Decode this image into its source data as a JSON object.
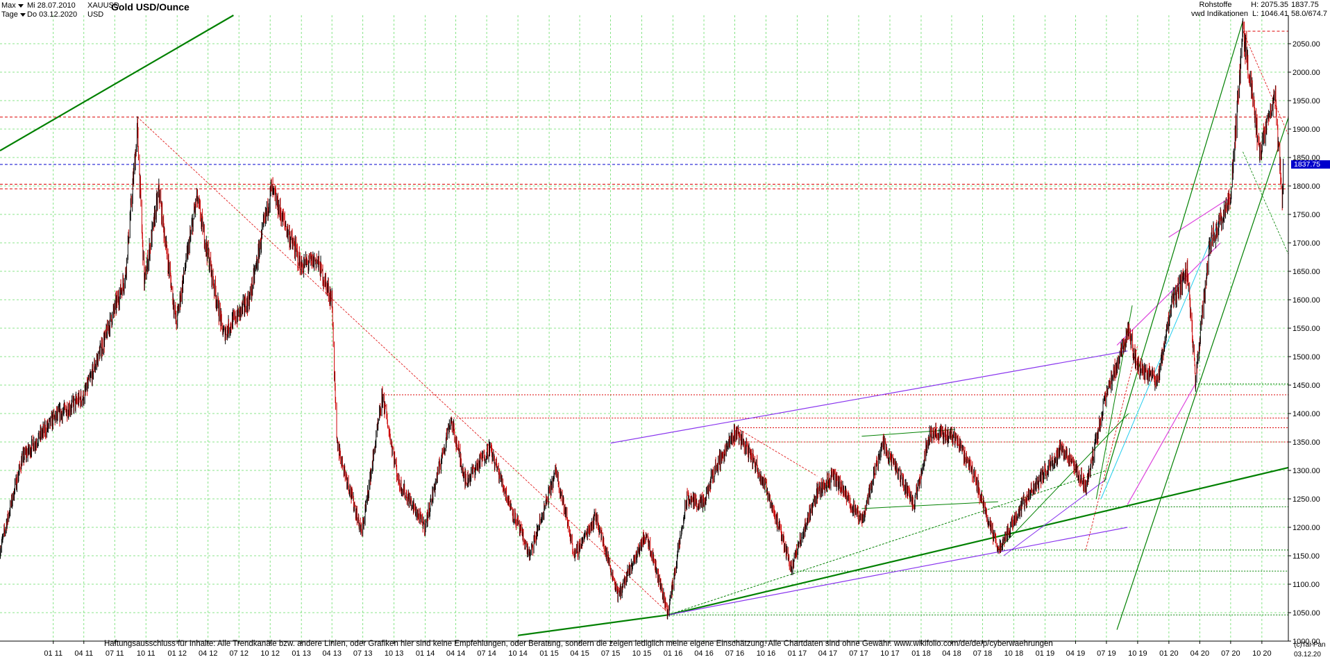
{
  "header": {
    "range_label": "Max",
    "interval_label": "Tage",
    "from_date": "Mi 28.07.2010",
    "to_date": "Do 03.12.2020",
    "symbol": "XAUUSD",
    "currency": "USD",
    "title": "Gold USD/Ounce"
  },
  "info": {
    "category": "Rohstoffe",
    "source": "vwd Indikationen",
    "high_label": "H: 2075.35",
    "low_label": "L: 1046.41",
    "last": "1837.75",
    "change": "58.0/674.7"
  },
  "footer": {
    "disclaimer": "Haftungsausschluss für Inhalte: Alle Trendkanäle bzw. andere Linien, oder Grafiken hier sind keine Empfehlungen, oder Beratung, sondern die zeigen lediglich meine eigene Einschätzung. Alle Chartdaten sind ohne Gewähr.  www.wikifolio.com/de/de/p/cyberwaehrungen",
    "copyright": "(c)Tai-Pan",
    "end_date": "03.12.20"
  },
  "colors": {
    "candle_up": "#000000",
    "candle_down": "#cc0000",
    "grid": "#66dd66",
    "trend_green": "#008000",
    "resistance_red": "#dd0000",
    "current_blue": "#0000cc",
    "purple": "#8833ee",
    "magenta": "#dd44dd",
    "cyan": "#22ccee"
  },
  "chart_data": {
    "type": "line",
    "subtype": "candlestick",
    "title": "Gold USD/Ounce",
    "ylim": [
      1000,
      2100
    ],
    "yticks": [
      1000,
      1050,
      1100,
      1150,
      1200,
      1250,
      1300,
      1350,
      1400,
      1450,
      1500,
      1550,
      1600,
      1650,
      1700,
      1750,
      1800,
      1850,
      1900,
      1950,
      2000,
      2050
    ],
    "xticks": [
      "01 11",
      "04 11",
      "07 11",
      "10 11",
      "01 12",
      "04 12",
      "07 12",
      "10 12",
      "01 13",
      "04 13",
      "07 13",
      "10 13",
      "01 14",
      "04 14",
      "07 14",
      "10 14",
      "01 15",
      "04 15",
      "07 15",
      "10 15",
      "01 16",
      "04 16",
      "07 16",
      "10 16",
      "01 17",
      "04 17",
      "07 17",
      "10 17",
      "01 18",
      "04 18",
      "07 18",
      "10 18",
      "01 19",
      "04 19",
      "07 19",
      "10 19",
      "01 20",
      "04 20",
      "07 20",
      "10 20"
    ],
    "grid": true,
    "current_price": 1837.75,
    "series": [
      {
        "name": "",
        "x": [
          "2010-07-28",
          "2010-10-01",
          "2011-01-01",
          "2011-04-01",
          "2011-06-01",
          "2011-08-01",
          "2011-09-06",
          "2011-09-26",
          "2011-11-08",
          "2011-12-29",
          "2012-02-28",
          "2012-05-16",
          "2012-08-01",
          "2012-10-04",
          "2012-12-31",
          "2013-02-15",
          "2013-04-01",
          "2013-04-15",
          "2013-06-28",
          "2013-08-28",
          "2013-10-15",
          "2013-12-31",
          "2014-03-17",
          "2014-05-01",
          "2014-07-10",
          "2014-09-01",
          "2014-11-05",
          "2015-01-22",
          "2015-03-17",
          "2015-05-18",
          "2015-07-24",
          "2015-10-14",
          "2015-12-17",
          "2016-02-11",
          "2016-04-01",
          "2016-05-01",
          "2016-07-06",
          "2016-09-01",
          "2016-10-07",
          "2016-12-15",
          "2017-02-27",
          "2017-04-17",
          "2017-07-10",
          "2017-09-08",
          "2017-12-12",
          "2018-01-25",
          "2018-04-11",
          "2018-06-01",
          "2018-08-16",
          "2018-10-26",
          "2019-02-20",
          "2019-05-02",
          "2019-06-25",
          "2019-09-04",
          "2019-10-01",
          "2019-12-01",
          "2020-01-08",
          "2020-02-24",
          "2020-03-19",
          "2020-05-01",
          "2020-07-01",
          "2020-08-06",
          "2020-09-01",
          "2020-09-24",
          "2020-11-09",
          "2020-11-30",
          "2020-12-03"
        ],
        "y": [
          1160,
          1320,
          1390,
          1430,
          1530,
          1640,
          1900,
          1630,
          1790,
          1560,
          1780,
          1540,
          1600,
          1795,
          1660,
          1670,
          1600,
          1350,
          1190,
          1430,
          1280,
          1200,
          1390,
          1280,
          1340,
          1250,
          1150,
          1300,
          1150,
          1220,
          1080,
          1190,
          1050,
          1250,
          1240,
          1300,
          1370,
          1310,
          1260,
          1130,
          1260,
          1290,
          1210,
          1350,
          1240,
          1365,
          1360,
          1300,
          1160,
          1240,
          1340,
          1270,
          1420,
          1550,
          1480,
          1460,
          1590,
          1650,
          1460,
          1700,
          1780,
          2070,
          1970,
          1860,
          1960,
          1770,
          1837
        ]
      }
    ]
  }
}
